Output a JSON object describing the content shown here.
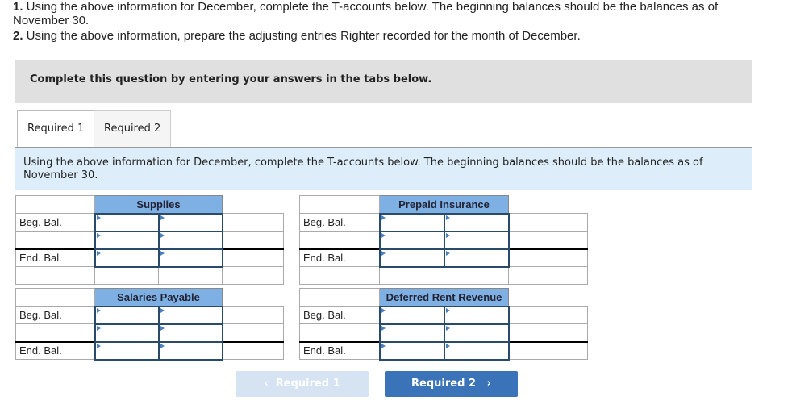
{
  "question": {
    "line1_num": "1.",
    "line1": " Using the above information for December, complete the T-accounts below. The beginning balances should be the balances as of",
    "line1b": "November 30.",
    "line2_num": "2.",
    "line2": " Using the above information, prepare the adjusting entries Righter recorded for the month of December."
  },
  "banner": "Complete this question by entering your answers in the tabs below.",
  "tabs": [
    {
      "label": "Required 1",
      "active": true
    },
    {
      "label": "Required 2",
      "active": false
    }
  ],
  "instructions": "Using the above information for December, complete the T-accounts below. The beginning balances should be the balances as of November 30.",
  "accounts": [
    {
      "title": "Supplies",
      "rows": [
        "Beg. Bal.",
        "",
        "End. Bal.",
        ""
      ]
    },
    {
      "title": "Prepaid Insurance",
      "rows": [
        "Beg. Bal.",
        "",
        "End. Bal.",
        ""
      ]
    },
    {
      "title": "Salaries Payable",
      "rows": [
        "Beg. Bal.",
        "",
        "End. Bal."
      ]
    },
    {
      "title": "Deferred Rent Revenue",
      "rows": [
        "Beg. Bal.",
        "",
        "End. Bal."
      ]
    }
  ],
  "nav": {
    "prev_label": "Required 1",
    "prev_icon": "chevron-left-icon",
    "next_label": "Required 2",
    "next_icon": "chevron-right-icon",
    "prev_disabled": true
  },
  "colors": {
    "header": "#7fb0e4",
    "next_button": "#3a73b8",
    "prev_button_disabled": "#d6e3f2",
    "instructions_bg": "#ddeefa"
  }
}
